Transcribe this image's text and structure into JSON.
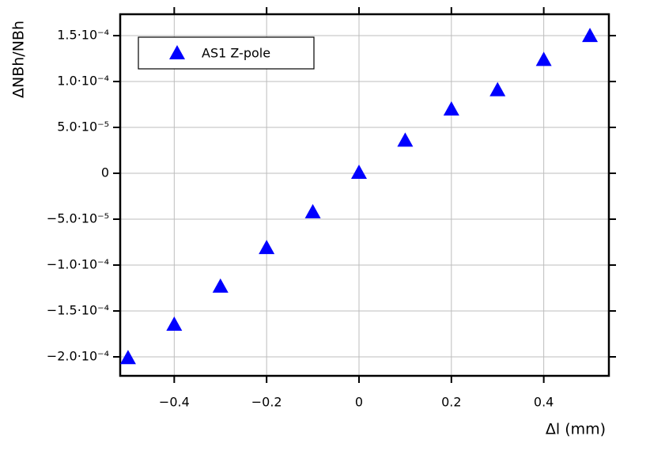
{
  "chart_data": {
    "type": "scatter",
    "x_label": "Δl (mm)",
    "y_label": "ΔNBh/NBh",
    "xlim": [
      -0.517,
      0.541
    ],
    "ylim": [
      -0.0002207,
      0.0001733
    ],
    "xticks": [
      {
        "value": -0.4,
        "label": "−0.4"
      },
      {
        "value": -0.2,
        "label": "−0.2"
      },
      0,
      0.2,
      0.4
    ],
    "yticks": [
      {
        "value": -0.0002,
        "label": "−2.0·10⁻⁴"
      },
      {
        "value": -0.00015,
        "label": "−1.5·10⁻⁴"
      },
      {
        "value": -0.0001,
        "label": "−1.0·10⁻⁴"
      },
      {
        "value": -5e-05,
        "label": "−5.0·10⁻⁵"
      },
      0,
      {
        "value": 5e-05,
        "label": "5.0·10⁻⁵"
      },
      {
        "value": 0.0001,
        "label": "1.0·10⁻⁴"
      },
      {
        "value": 0.00015,
        "label": "1.5·10⁻⁴"
      }
    ],
    "grid": true,
    "legend": "top-left",
    "series": [
      {
        "name": "AS1 Z-pole",
        "color": "#0000ff",
        "x": [
          -0.5,
          -0.4,
          -0.3,
          -0.2,
          -0.1,
          0,
          0.1,
          0.2,
          0.3,
          0.4,
          0.5
        ],
        "values": [
          -0.000202,
          -0.0001655,
          -0.000124,
          -8.2e-05,
          -4.3e-05,
          0,
          3.5e-05,
          6.9e-05,
          9e-05,
          0.000123,
          0.000149
        ]
      }
    ]
  }
}
